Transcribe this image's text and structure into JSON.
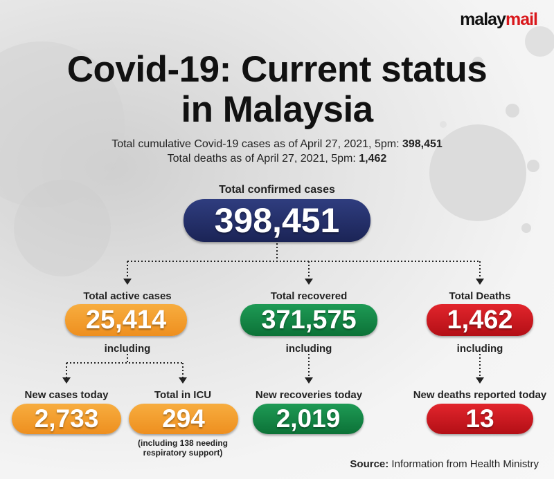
{
  "brand": {
    "part1": "malay",
    "part2": "mail"
  },
  "title": {
    "line1": "Covid-19: Current status",
    "line2": "in Malaysia"
  },
  "summary": {
    "cases_text": "Total cumulative Covid-19 cases as of April 27, 2021, 5pm: ",
    "cases_value": "398,451",
    "deaths_text": "Total deaths as of April 27, 2021, 5pm: ",
    "deaths_value": "1,462"
  },
  "confirmed": {
    "label": "Total confirmed cases",
    "value": "398,451"
  },
  "active": {
    "label": "Total active cases",
    "value": "25,414",
    "including": "including"
  },
  "recovered": {
    "label": "Total recovered",
    "value": "371,575",
    "including": "including"
  },
  "deaths": {
    "label": "Total Deaths",
    "value": "1,462",
    "including": "including"
  },
  "new_cases": {
    "label": "New cases today",
    "value": "2,733"
  },
  "icu": {
    "label": "Total in ICU",
    "value": "294",
    "note_line1": "(including 138 needing",
    "note_line2": "respiratory support)"
  },
  "new_recoveries": {
    "label": "New recoveries today",
    "value": "2,019"
  },
  "new_deaths": {
    "label": "New deaths reported today",
    "value": "13"
  },
  "source": {
    "prefix": "Source:",
    "text": " Information from Health Ministry"
  },
  "colors": {
    "navy": "#1f2a63",
    "orange": "#f29a2a",
    "green": "#12803f",
    "red": "#c9171e",
    "brand_red": "#d9171b"
  }
}
